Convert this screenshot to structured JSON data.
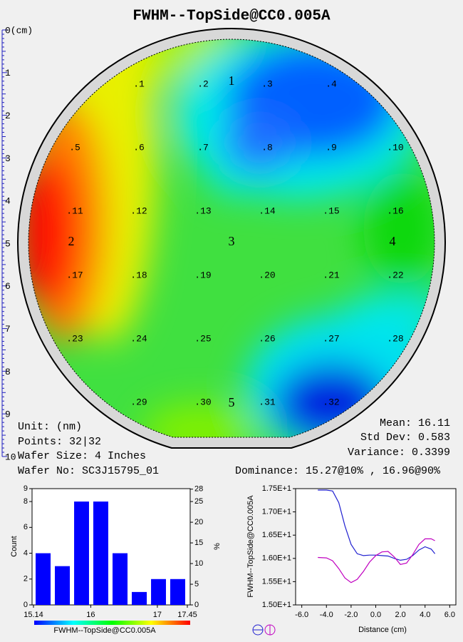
{
  "title": "FWHM--TopSide@CC0.005A",
  "ruler": {
    "ticks": [
      {
        "value": 0,
        "label": "0(cm)"
      },
      1,
      2,
      3,
      4,
      5,
      6,
      7,
      8,
      9,
      10
    ]
  },
  "wafer": {
    "points": [
      [
        ".1",
        ".2",
        ".3",
        ".4"
      ],
      [
        ".5",
        ".6",
        ".7",
        ".8",
        ".9",
        ".10"
      ],
      [
        ".11",
        ".12",
        ".13",
        ".14",
        ".15",
        ".16"
      ],
      [
        ".17",
        ".18",
        ".19",
        ".20",
        ".21",
        ".22"
      ],
      [
        ".23",
        ".24",
        ".25",
        ".26",
        ".27",
        ".28"
      ],
      [
        ".29",
        ".30",
        ".31",
        ".32"
      ]
    ],
    "sites": [
      "1",
      "2",
      "3",
      "4",
      "5"
    ]
  },
  "stats": {
    "unit": "Unit: (nm)",
    "points": "Points: 32|32",
    "size": "Wafer Size: 4 Inches",
    "wafer_no": "Wafer No: SC3J15795_01",
    "mean": "Mean: 16.11",
    "std": "Std Dev: 0.583",
    "variance": "Variance: 0.3399",
    "dominance": "Dominance: 15.27@10% , 16.96@90%"
  },
  "chart_data": [
    {
      "type": "histogram",
      "bins": [
        15.14,
        15.429,
        15.718,
        16.006,
        16.295,
        16.584,
        16.873,
        17.161,
        17.45
      ],
      "values": [
        4,
        3,
        8,
        8,
        4,
        1,
        2,
        2
      ],
      "color": "#0000ff",
      "xlim": [
        15.14,
        17.45
      ],
      "xticks": [
        15.14,
        16,
        17,
        17.45
      ],
      "ylim": [
        0,
        9
      ],
      "yticks": [
        0,
        2,
        4,
        6,
        8,
        9
      ],
      "y2lim": [
        0,
        28.125
      ],
      "y2ticks": [
        0,
        5,
        10,
        15,
        20,
        25,
        28
      ],
      "ylabel": "Count",
      "y2label": "%",
      "xlabel": "FWHM--TopSide@CC0.005A"
    },
    {
      "type": "line",
      "x": [
        -4.7,
        -4,
        -3.5,
        -3,
        -2.5,
        -2,
        -1.5,
        -1,
        -0.5,
        0,
        0.5,
        1,
        1.5,
        2,
        2.5,
        3,
        3.5,
        4,
        4.5,
        4.8
      ],
      "series": [
        {
          "color": "#2020d0",
          "values": [
            17.47,
            17.47,
            17.45,
            17.2,
            16.7,
            16.3,
            16.1,
            16.06,
            16.07,
            16.07,
            16.06,
            16.05,
            16.0,
            15.96,
            15.98,
            16.06,
            16.18,
            16.25,
            16.2,
            16.1
          ]
        },
        {
          "color": "#c000c0",
          "values": [
            16.02,
            16.01,
            15.95,
            15.78,
            15.58,
            15.48,
            15.55,
            15.72,
            15.92,
            16.06,
            16.14,
            16.15,
            16.03,
            15.87,
            15.9,
            16.08,
            16.3,
            16.42,
            16.42,
            16.38
          ]
        }
      ],
      "xlim": [
        -6.5,
        6.5
      ],
      "xticks": [
        {
          "value": -6,
          "label": "-6.0"
        },
        {
          "value": -4,
          "label": "-4.0"
        },
        {
          "value": -2,
          "label": "-2.0"
        },
        {
          "value": 0,
          "label": "0.0"
        },
        {
          "value": 2,
          "label": "2.0"
        },
        {
          "value": 4,
          "label": "4.0"
        },
        {
          "value": 6,
          "label": "6.0"
        }
      ],
      "ylim": [
        15.0,
        17.5
      ],
      "yticks": [
        {
          "value": 15.0,
          "label": "1.50E+1"
        },
        {
          "value": 15.5,
          "label": "1.55E+1"
        },
        {
          "value": 16.0,
          "label": "1.60E+1"
        },
        {
          "value": 16.5,
          "label": "1.65E+1"
        },
        {
          "value": 17.0,
          "label": "1.70E+1"
        },
        {
          "value": 17.5,
          "label": "1.75E+1"
        }
      ],
      "ylabel": "FWHM--TopSide@CC0.005A",
      "xlabel": "Distance (cm)"
    }
  ]
}
